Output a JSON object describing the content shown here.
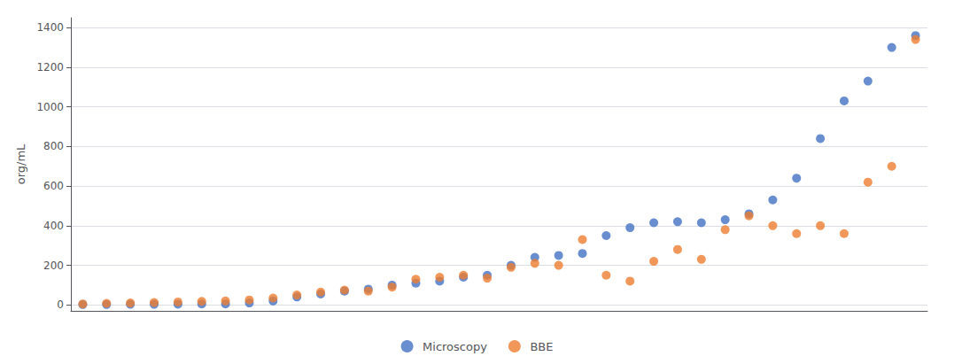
{
  "chart_data": {
    "type": "scatter",
    "categories": [
      null,
      null,
      null,
      null,
      null,
      null,
      null,
      null,
      null,
      null,
      null,
      null,
      null,
      null,
      null,
      null,
      null,
      null,
      null,
      null,
      null,
      null,
      null,
      null,
      null,
      null,
      null,
      null,
      null,
      null,
      null,
      null,
      null,
      null,
      null,
      null
    ],
    "series": [
      {
        "name": "Microscopy",
        "color": "#4472C4",
        "values": [
          2,
          2,
          3,
          3,
          4,
          5,
          5,
          10,
          20,
          40,
          55,
          70,
          80,
          100,
          110,
          120,
          140,
          150,
          200,
          240,
          250,
          260,
          350,
          390,
          415,
          420,
          415,
          430,
          460,
          530,
          640,
          840,
          1030,
          1130,
          1300,
          1360
        ]
      },
      {
        "name": "BBE",
        "color": "#ED7D31",
        "values": [
          5,
          8,
          10,
          12,
          15,
          18,
          20,
          25,
          35,
          50,
          65,
          75,
          70,
          90,
          130,
          140,
          150,
          135,
          190,
          210,
          200,
          330,
          150,
          120,
          220,
          280,
          230,
          380,
          450,
          400,
          360,
          400,
          360,
          620,
          700,
          1340
        ]
      }
    ],
    "ylabel": "org/mL",
    "ylim": [
      -30,
      1450
    ],
    "yticks": [
      0,
      200,
      400,
      600,
      800,
      1000,
      1200,
      1400
    ],
    "grid": true,
    "legend": "bottom",
    "tick_labels": "y"
  }
}
